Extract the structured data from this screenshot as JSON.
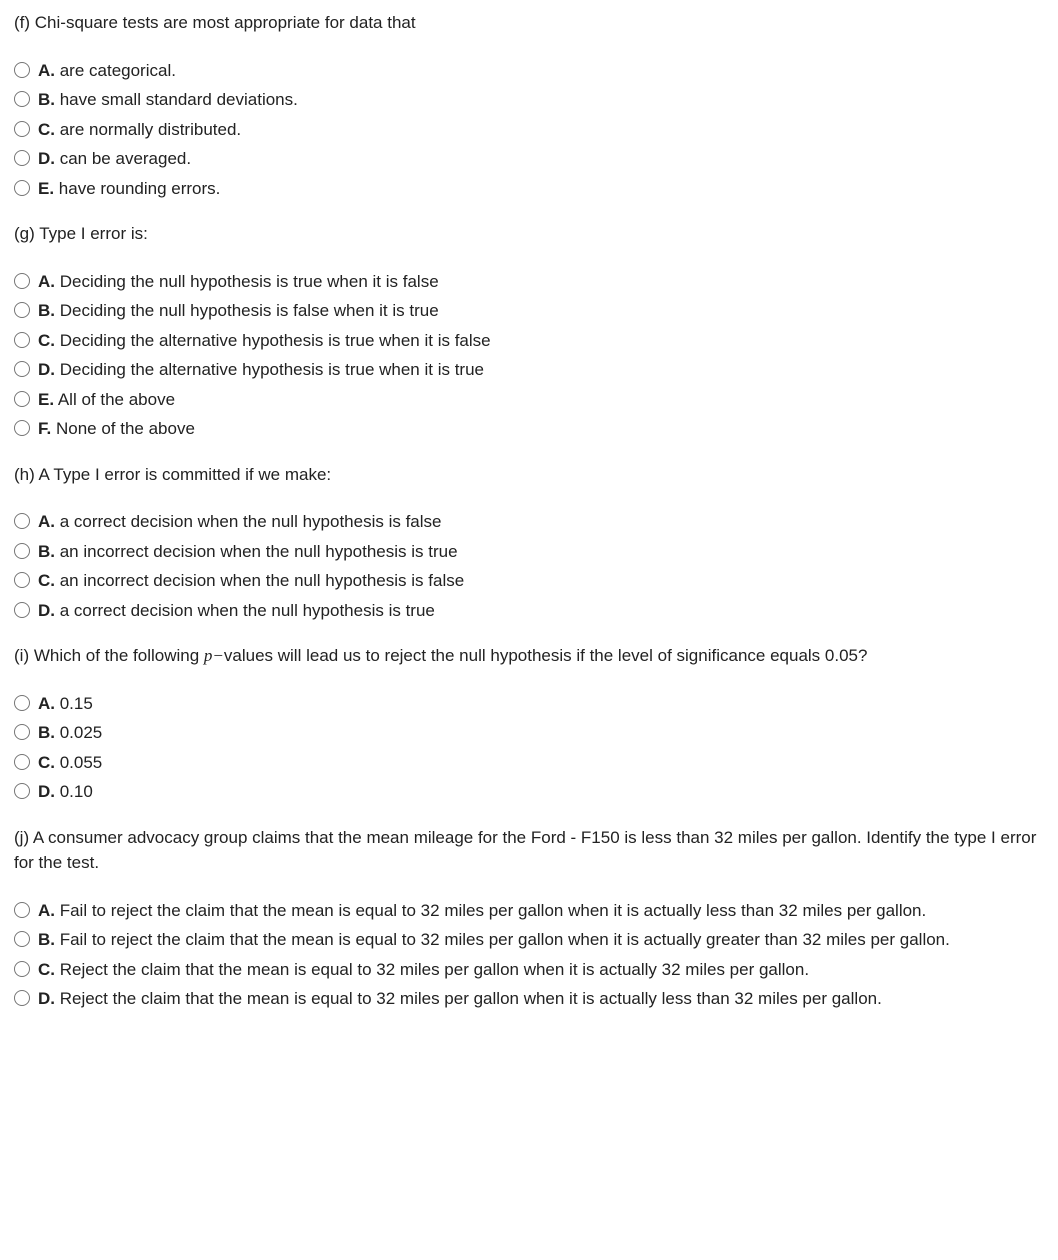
{
  "questions": [
    {
      "id": "q-f",
      "prompt": "(f) Chi-square tests are most appropriate for data that",
      "options": [
        {
          "letter": "A.",
          "text": " are categorical."
        },
        {
          "letter": "B.",
          "text": " have small standard deviations."
        },
        {
          "letter": "C.",
          "text": " are normally distributed."
        },
        {
          "letter": "D.",
          "text": " can be averaged."
        },
        {
          "letter": "E.",
          "text": " have rounding errors."
        }
      ]
    },
    {
      "id": "q-g",
      "prompt": "(g) Type I error is:",
      "options": [
        {
          "letter": "A.",
          "text": " Deciding the null hypothesis is true when it is false"
        },
        {
          "letter": "B.",
          "text": " Deciding the null hypothesis is false when it is true"
        },
        {
          "letter": "C.",
          "text": " Deciding the alternative hypothesis is true when it is false"
        },
        {
          "letter": "D.",
          "text": " Deciding the alternative hypothesis is true when it is true"
        },
        {
          "letter": "E.",
          "text": " All of the above"
        },
        {
          "letter": "F.",
          "text": " None of the above"
        }
      ]
    },
    {
      "id": "q-h",
      "prompt": "(h) A Type I error is committed if we make:",
      "options": [
        {
          "letter": "A.",
          "text": " a correct decision when the null hypothesis is false"
        },
        {
          "letter": "B.",
          "text": " an incorrect decision when the null hypothesis is true"
        },
        {
          "letter": "C.",
          "text": " an incorrect decision when the null hypothesis is false"
        },
        {
          "letter": "D.",
          "text": " a correct decision when the null hypothesis is true"
        }
      ]
    },
    {
      "id": "q-i",
      "prompt_pre": "(i) Which of the following ",
      "prompt_var": "p−",
      "prompt_post": "values will lead us to reject the null hypothesis if the level of significance equals 0.05?",
      "options": [
        {
          "letter": "A.",
          "text": " 0.15"
        },
        {
          "letter": "B.",
          "text": " 0.025"
        },
        {
          "letter": "C.",
          "text": " 0.055"
        },
        {
          "letter": "D.",
          "text": " 0.10"
        }
      ]
    },
    {
      "id": "q-j",
      "prompt": "(j) A consumer advocacy group claims that the mean mileage for the Ford - F150 is less than 32 miles per gallon. Identify the type I error for the test.",
      "options": [
        {
          "letter": "A.",
          "text": " Fail to reject the claim that the mean is equal to 32 miles per gallon when it is actually less than 32 miles per gallon."
        },
        {
          "letter": "B.",
          "text": " Fail to reject the claim that the mean is equal to 32 miles per gallon when it is actually greater than 32 miles per gallon."
        },
        {
          "letter": "C.",
          "text": " Reject the claim that the mean is equal to 32 miles per gallon when it is actually 32 miles per gallon."
        },
        {
          "letter": "D.",
          "text": " Reject the claim that the mean is equal to 32 miles per gallon when it is actually less than 32 miles per gallon."
        }
      ]
    }
  ]
}
